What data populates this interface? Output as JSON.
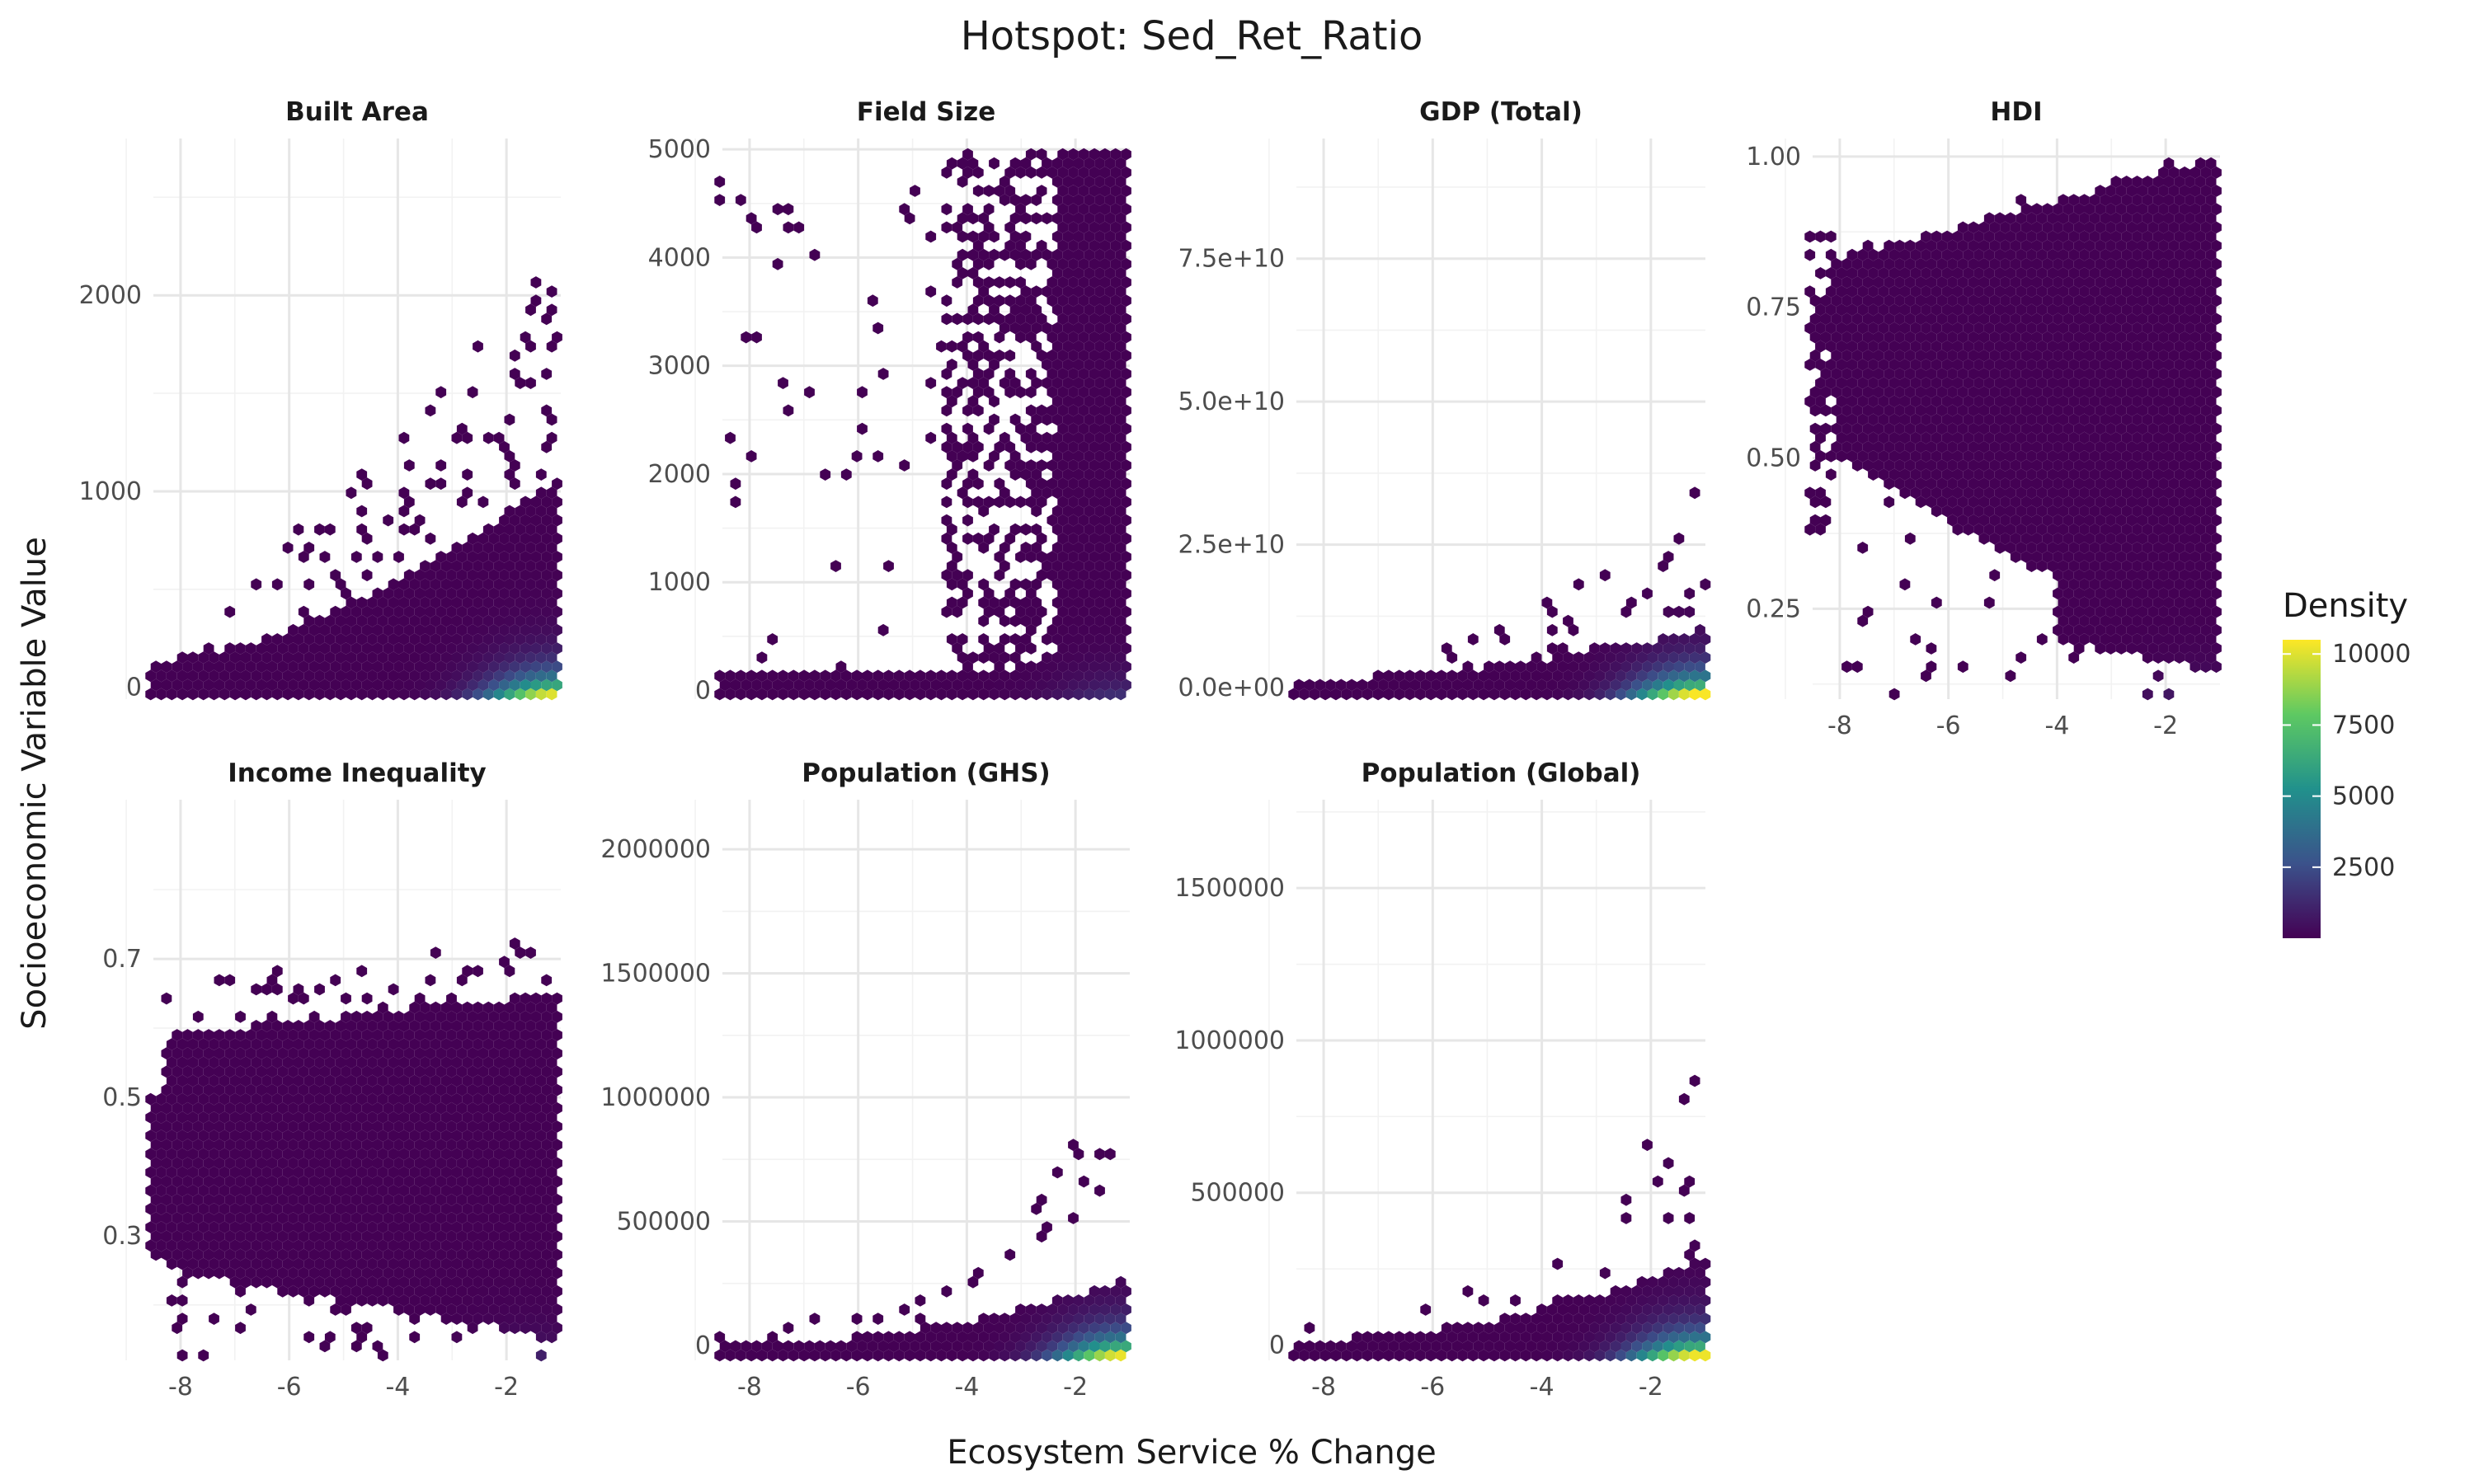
{
  "chart_data": {
    "type": "hexbin",
    "title": "Hotspot: Sed_Ret_Ratio",
    "xlabel": "Ecosystem Service % Change",
    "ylabel": "Socioeconomic Variable Value",
    "x_range": [
      -8.5,
      -1.0
    ],
    "x_ticks": [
      -8,
      -6,
      -4,
      -2
    ],
    "x_tick_labels": [
      "-8",
      "-6",
      "-4",
      "-2"
    ],
    "colormap": "viridis",
    "colors": [
      "#440154",
      "#3b528b",
      "#21918c",
      "#5ec962",
      "#fde725"
    ],
    "legend": {
      "title": "Density",
      "range": [
        1,
        10500
      ],
      "ticks": [
        2500,
        5000,
        7500,
        10000
      ],
      "tick_labels": [
        "2500",
        "5000",
        "7500",
        "10000"
      ],
      "placement": "right"
    },
    "panels": [
      {
        "name": "Built Area",
        "ylim": [
          -60,
          2800
        ],
        "y_ticks": [
          0,
          1000,
          2000
        ],
        "y_tick_labels": [
          "0",
          "1000",
          "2000"
        ],
        "max_density": 10000,
        "density_peak_x": -1.1
      },
      {
        "name": "Field Size",
        "ylim": [
          -80,
          5100
        ],
        "y_ticks": [
          0,
          1000,
          2000,
          3000,
          4000,
          5000
        ],
        "y_tick_labels": [
          "0",
          "1000",
          "2000",
          "3000",
          "4000",
          "5000"
        ],
        "max_density": 1500,
        "density_peak_x": -1.1
      },
      {
        "name": "GDP (Total)",
        "ylim": [
          -2000000000.0,
          96000000000.0
        ],
        "y_ticks": [
          0,
          25000000000.0,
          50000000000.0,
          75000000000.0
        ],
        "y_tick_labels": [
          "0.0e+00",
          "2.5e+10",
          "5.0e+10",
          "7.5e+10"
        ],
        "max_density": 10500,
        "density_peak_x": -1.1
      },
      {
        "name": "HDI",
        "ylim": [
          0.1,
          1.03
        ],
        "y_ticks": [
          0.25,
          0.5,
          0.75,
          1.0
        ],
        "y_tick_labels": [
          "0.25",
          "0.50",
          "0.75",
          "1.00"
        ],
        "max_density": 900,
        "density_peak_x": -1.3
      },
      {
        "name": "Income Inequality",
        "ylim": [
          0.12,
          0.93
        ],
        "y_ticks": [
          0.3,
          0.5,
          0.7
        ],
        "y_tick_labels": [
          "0.3",
          "0.5",
          "0.7"
        ],
        "max_density": 1000,
        "density_peak_x": -1.5
      },
      {
        "name": "Population (GHS)",
        "ylim": [
          -60000,
          2200000
        ],
        "y_ticks": [
          0,
          500000,
          1000000,
          1500000,
          2000000
        ],
        "y_tick_labels": [
          "0",
          "500000",
          "1000000",
          "1500000",
          "2000000"
        ],
        "max_density": 10200,
        "density_peak_x": -1.1
      },
      {
        "name": "Population (Global)",
        "ylim": [
          -50000,
          1790000
        ],
        "y_ticks": [
          0,
          500000,
          1000000,
          1500000
        ],
        "y_tick_labels": [
          "0",
          "500000",
          "1000000",
          "1500000"
        ],
        "max_density": 10300,
        "density_peak_x": -1.1
      }
    ]
  }
}
